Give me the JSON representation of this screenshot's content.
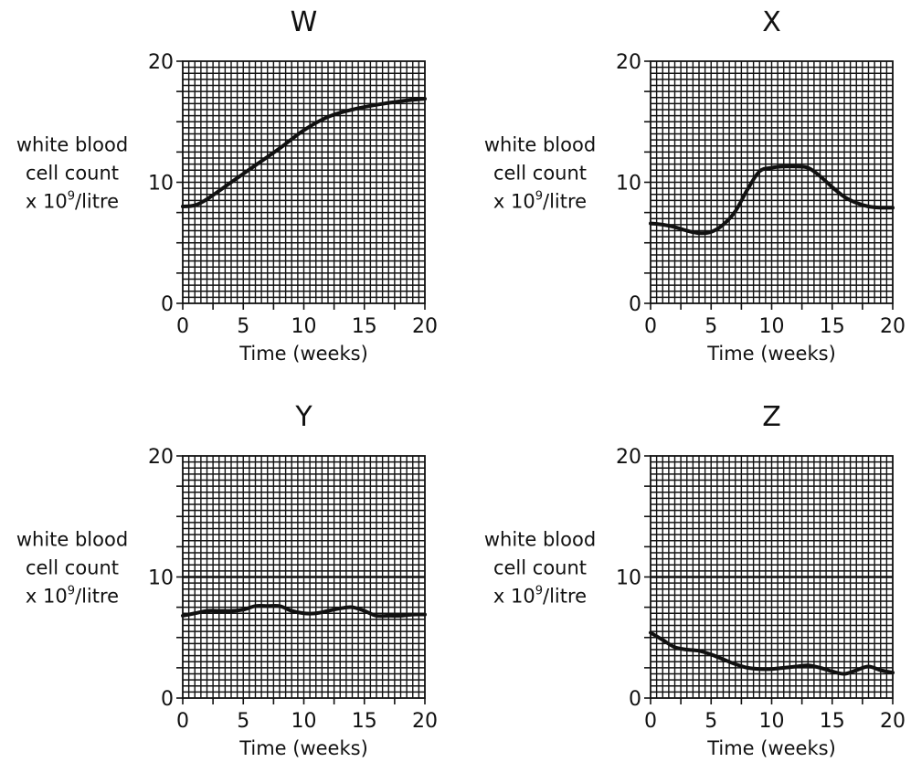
{
  "chart_data": [
    {
      "type": "line",
      "title": "W",
      "ylabel": [
        "white blood",
        "cell count",
        "x 10",
        "9",
        "/litre"
      ],
      "xlabel": "Time (weeks)",
      "xlim": [
        0,
        20
      ],
      "ylim": [
        0,
        20
      ],
      "xticks": [
        0,
        5,
        10,
        15,
        20
      ],
      "yticks": [
        0,
        10,
        20
      ],
      "grid": true,
      "reference_line": null,
      "series": [
        {
          "x": [
            0,
            1,
            2,
            4,
            6,
            8,
            10,
            12,
            14,
            16,
            18,
            20
          ],
          "y": [
            8.0,
            8.1,
            8.6,
            10.0,
            11.4,
            12.8,
            14.3,
            15.4,
            16.0,
            16.4,
            16.7,
            16.9
          ]
        }
      ]
    },
    {
      "type": "line",
      "title": "X",
      "ylabel": [
        "white blood",
        "cell count",
        "x 10",
        "9",
        "/litre"
      ],
      "xlabel": "Time (weeks)",
      "xlim": [
        0,
        20
      ],
      "ylim": [
        0,
        20
      ],
      "xticks": [
        0,
        5,
        10,
        15,
        20
      ],
      "yticks": [
        0,
        10,
        20
      ],
      "grid": true,
      "reference_line": null,
      "series": [
        {
          "x": [
            0,
            1,
            2,
            3,
            4,
            5,
            6,
            7,
            8,
            9,
            10,
            11,
            12,
            13,
            14,
            15,
            16,
            17,
            18,
            19,
            20
          ],
          "y": [
            6.6,
            6.5,
            6.3,
            6.0,
            5.8,
            5.9,
            6.5,
            7.6,
            9.4,
            10.9,
            11.2,
            11.3,
            11.3,
            11.2,
            10.5,
            9.6,
            8.8,
            8.3,
            8.0,
            7.9,
            7.9
          ]
        }
      ]
    },
    {
      "type": "line",
      "title": "Y",
      "ylabel": [
        "white blood",
        "cell count",
        "x 10",
        "9",
        "/litre"
      ],
      "xlabel": "Time (weeks)",
      "xlim": [
        0,
        20
      ],
      "ylim": [
        0,
        20
      ],
      "xticks": [
        0,
        5,
        10,
        15,
        20
      ],
      "yticks": [
        0,
        10,
        20
      ],
      "grid": true,
      "reference_line": 10,
      "series": [
        {
          "x": [
            0,
            1,
            2,
            3,
            4,
            5,
            6,
            7,
            8,
            9,
            10,
            11,
            12,
            13,
            14,
            15,
            16,
            17,
            18,
            19,
            20
          ],
          "y": [
            6.8,
            7.0,
            7.2,
            7.2,
            7.2,
            7.3,
            7.6,
            7.6,
            7.6,
            7.2,
            7.0,
            7.0,
            7.2,
            7.4,
            7.5,
            7.2,
            6.8,
            6.8,
            6.8,
            6.9,
            6.9
          ]
        }
      ]
    },
    {
      "type": "line",
      "title": "Z",
      "ylabel": [
        "white blood",
        "cell count",
        "x 10",
        "9",
        "/litre"
      ],
      "xlabel": "Time (weeks)",
      "xlim": [
        0,
        20
      ],
      "ylim": [
        0,
        20
      ],
      "xticks": [
        0,
        5,
        10,
        15,
        20
      ],
      "yticks": [
        0,
        10,
        20
      ],
      "grid": true,
      "reference_line": 10,
      "series": [
        {
          "x": [
            0,
            1,
            2,
            3,
            4,
            5,
            6,
            7,
            8,
            9,
            10,
            11,
            12,
            13,
            14,
            15,
            16,
            17,
            18,
            19,
            20
          ],
          "y": [
            5.4,
            4.8,
            4.2,
            4.0,
            3.9,
            3.6,
            3.2,
            2.8,
            2.5,
            2.4,
            2.4,
            2.5,
            2.6,
            2.7,
            2.5,
            2.2,
            2.0,
            2.3,
            2.6,
            2.3,
            2.1
          ]
        }
      ]
    }
  ]
}
